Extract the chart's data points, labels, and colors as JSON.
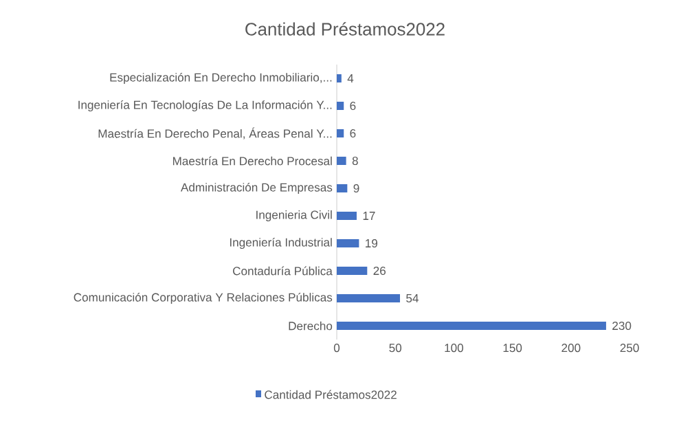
{
  "chart_data": {
    "type": "bar",
    "orientation": "horizontal",
    "title": "Cantidad Préstamos2022",
    "categories": [
      "Especialización En Derecho Inmobiliario,...",
      "Ingeniería En Tecnologías De La Información Y...",
      "Maestría En Derecho Penal, Áreas Penal Y...",
      "Maestría En Derecho Procesal",
      "Administración De Empresas",
      "Ingenieria Civil",
      "Ingeniería Industrial",
      "Contaduría Pública",
      "Comunicación Corporativa Y Relaciones Públicas",
      "Derecho"
    ],
    "series": [
      {
        "name": "Cantidad Préstamos2022",
        "color": "#4472c4",
        "values": [
          4,
          6,
          6,
          8,
          9,
          17,
          19,
          26,
          54,
          230
        ]
      }
    ],
    "xlim": [
      0,
      250
    ],
    "xticks": [
      0,
      50,
      100,
      150,
      200,
      250
    ],
    "data_labels": true,
    "legend": "bottom",
    "grid": false
  }
}
